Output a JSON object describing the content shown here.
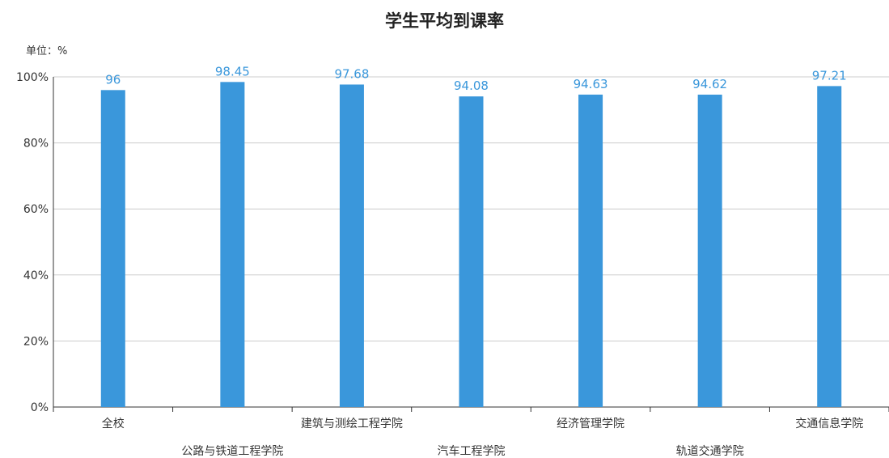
{
  "chart_data": {
    "type": "bar",
    "title": "学生平均到课率",
    "unit_label": "单位：%",
    "categories": [
      "全校",
      "公路与铁道工程学院",
      "建筑与测绘工程学院",
      "汽车工程学院",
      "经济管理学院",
      "轨道交通学院",
      "交通信息学院"
    ],
    "values": [
      96,
      98.45,
      97.68,
      94.08,
      94.63,
      94.62,
      97.21
    ],
    "data_labels": [
      "96",
      "98.45",
      "97.68",
      "94.08",
      "94.63",
      "94.62",
      "97.21"
    ],
    "ylim": [
      0,
      100
    ],
    "yticks": [
      0,
      20,
      40,
      60,
      80,
      100
    ],
    "ytick_labels": [
      "0%",
      "20%",
      "40%",
      "60%",
      "80%",
      "100%"
    ],
    "grid": true,
    "bar_color": "#3a97db",
    "label_color": "#3a97db"
  }
}
